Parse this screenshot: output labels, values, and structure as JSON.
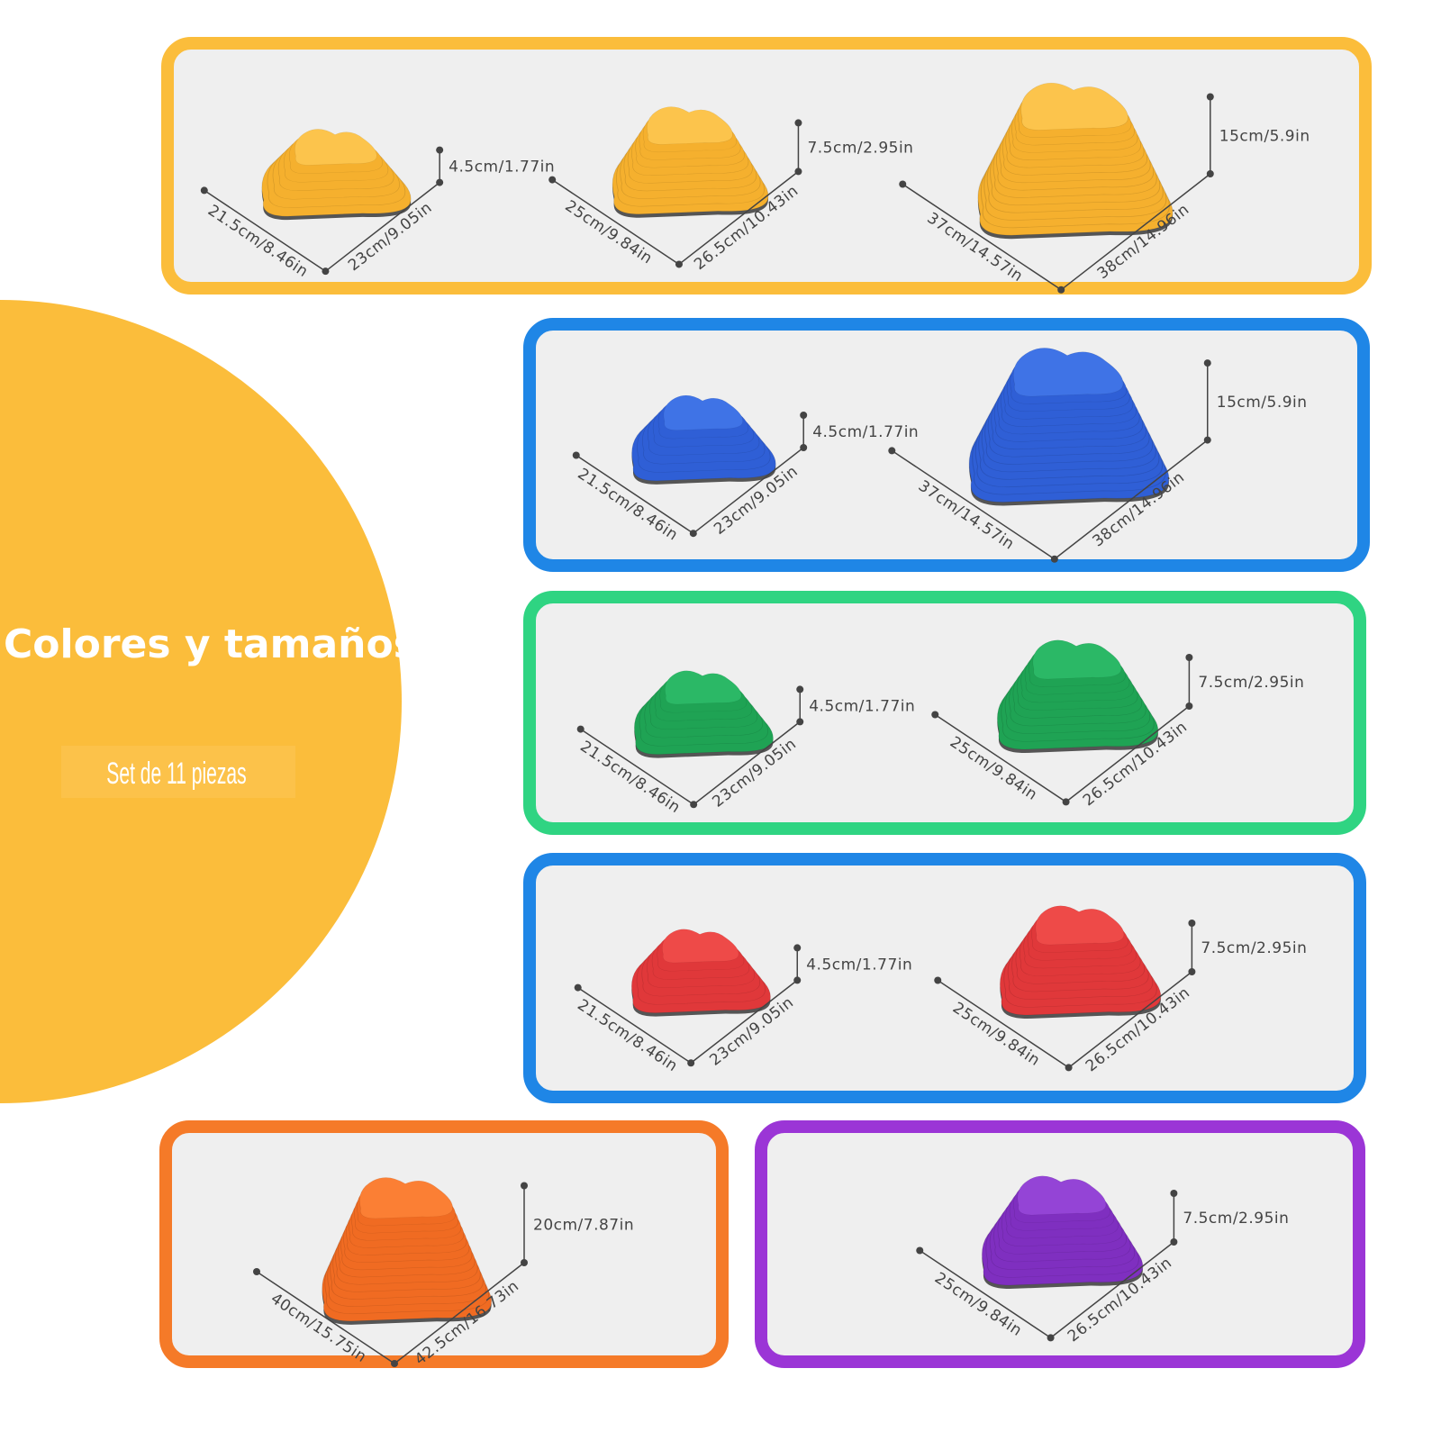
{
  "title": "Colores y tamaños",
  "subtitle": "Set de 11 piezas",
  "panels": [
    {
      "stones": [
        {
          "height": "4.5cm/1.77in",
          "width": "21.5cm/8.46in",
          "depth": "23cm/9.05in"
        },
        {
          "height": "7.5cm/2.95in",
          "width": "25cm/9.84in",
          "depth": "26.5cm/10.43in"
        },
        {
          "height": "15cm/5.9in",
          "width": "37cm/14.57in",
          "depth": "38cm/14.96in"
        }
      ]
    },
    {
      "stones": [
        {
          "height": "4.5cm/1.77in",
          "width": "21.5cm/8.46in",
          "depth": "23cm/9.05in"
        },
        {
          "height": "15cm/5.9in",
          "width": "37cm/14.57in",
          "depth": "38cm/14.96in"
        }
      ]
    },
    {
      "stones": [
        {
          "height": "4.5cm/1.77in",
          "width": "21.5cm/8.46in",
          "depth": "23cm/9.05in"
        },
        {
          "height": "7.5cm/2.95in",
          "width": "25cm/9.84in",
          "depth": "26.5cm/10.43in"
        }
      ]
    },
    {
      "stones": [
        {
          "height": "4.5cm/1.77in",
          "width": "21.5cm/8.46in",
          "depth": "23cm/9.05in"
        },
        {
          "height": "7.5cm/2.95in",
          "width": "25cm/9.84in",
          "depth": "26.5cm/10.43in"
        }
      ]
    },
    {
      "stones": [
        {
          "height": "20cm/7.87in",
          "width": "40cm/15.75in",
          "depth": "42.5cm/16.73in"
        }
      ]
    },
    {
      "stones": [
        {
          "height": "7.5cm/2.95in",
          "width": "25cm/9.84in",
          "depth": "26.5cm/10.43in"
        }
      ]
    }
  ]
}
